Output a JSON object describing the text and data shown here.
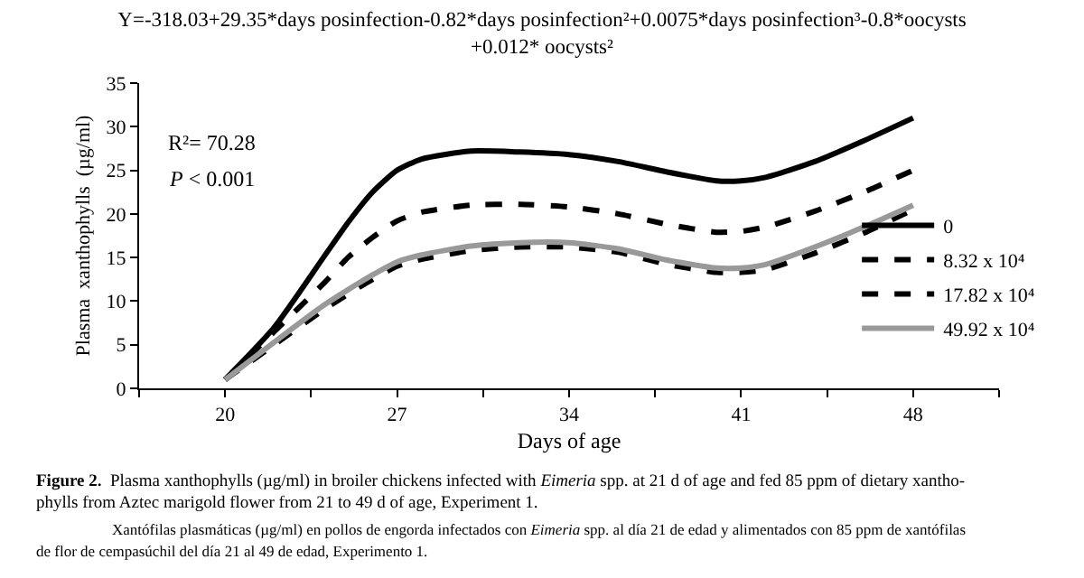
{
  "chart_data": {
    "type": "line",
    "title": "Y=-318.03+29.35*days posinfection-0.82*days posinfection²+0.0075*days posinfection³-0.8*oocysts\n+0.012* oocysts²",
    "xlabel": "Days of age",
    "ylabel": "Plasma  xanthophylls  (µg/ml)",
    "x": [
      20,
      22,
      24,
      25,
      26,
      27,
      28,
      30,
      32,
      34,
      36,
      38,
      40,
      41,
      42,
      44,
      46,
      48
    ],
    "series": [
      {
        "name": "0",
        "color": "#000000",
        "line_style": "solid",
        "values": [
          1,
          7,
          15,
          19,
          22.5,
          25,
          26.3,
          27.2,
          27.1,
          26.8,
          26,
          24.8,
          23.8,
          23.8,
          24.2,
          26,
          28.4,
          31
        ]
      },
      {
        "name": "8.32 x 10⁴",
        "color": "#000000",
        "line_style": "dashed",
        "values": [
          1,
          6.5,
          12,
          15,
          17.3,
          19.2,
          20.2,
          21,
          21.1,
          20.8,
          20,
          18.8,
          17.9,
          18,
          18.5,
          20.3,
          22.5,
          25
        ]
      },
      {
        "name": "17.82 x 10⁴",
        "color": "#000000",
        "line_style": "dashed",
        "values": [
          1,
          5,
          9,
          10.8,
          12.5,
          14,
          14.8,
          15.8,
          16.2,
          16.2,
          15.6,
          14.2,
          13.3,
          13.3,
          13.6,
          15.5,
          17.8,
          20.5
        ]
      },
      {
        "name": "49.92 x 10⁴",
        "color": "#999999",
        "line_style": "solid",
        "values": [
          1,
          5.3,
          9.5,
          11.3,
          13,
          14.5,
          15.3,
          16.3,
          16.7,
          16.7,
          16,
          14.7,
          13.8,
          13.8,
          14.2,
          16.2,
          18.5,
          21
        ]
      }
    ],
    "xlim": [
      16.5,
      51.5
    ],
    "xticks": [
      {
        "value": 16.5,
        "label": null
      },
      20,
      {
        "value": 23.5,
        "label": null
      },
      27,
      {
        "value": 30.5,
        "label": null
      },
      34,
      {
        "value": 37.5,
        "label": null
      },
      41,
      {
        "value": 44.5,
        "label": null
      },
      48,
      {
        "value": 51.5,
        "label": null
      }
    ],
    "ylim": [
      0,
      35
    ],
    "yticks": [
      0,
      5,
      10,
      15,
      20,
      25,
      30,
      35
    ],
    "legend": "right",
    "marker": "none",
    "annotations": [
      "R²= 70.28",
      "P < 0.001",
      "Figure 2.  Plasma xanthophylls (µg/ml) in broiler chickens infected with Eimeria spp. at 21 d of age and fed 85 ppm of dietary xantho-",
      "phylls from Aztec marigold flower from 21 to 49 d of age, Experiment 1.",
      "Xantófilas plasmáticas (µg/ml) en pollos de engorda infectados con Eimeria spp. al día 21 de edad y alimentados con 85 ppm de xantófilas",
      "de flor de cempasúchil del día 21 al 49 de edad, Experimento 1."
    ]
  }
}
